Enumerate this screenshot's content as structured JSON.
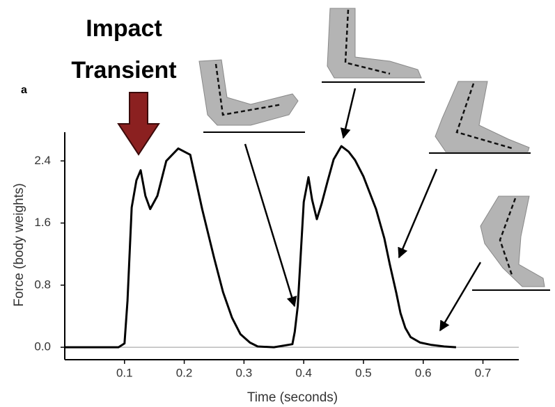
{
  "chart_data": {
    "type": "line",
    "annotations": [
      "Impact",
      "Transient"
    ],
    "panel_label": "a",
    "x_label": "Time (seconds)",
    "y_label": "Force (body weights)",
    "x": [
      0,
      0.09,
      0.1,
      0.105,
      0.112,
      0.12,
      0.127,
      0.135,
      0.143,
      0.155,
      0.17,
      0.19,
      0.21,
      0.23,
      0.25,
      0.265,
      0.28,
      0.294,
      0.31,
      0.323,
      0.35,
      0.381,
      0.385,
      0.39,
      0.395,
      0.4,
      0.408,
      0.414,
      0.422,
      0.43,
      0.44,
      0.45,
      0.463,
      0.475,
      0.486,
      0.5,
      0.521,
      0.535,
      0.544,
      0.555,
      0.562,
      0.57,
      0.579,
      0.595,
      0.614,
      0.635,
      0.655
    ],
    "values": [
      0,
      0,
      0.05,
      0.6,
      1.8,
      2.15,
      2.28,
      1.95,
      1.78,
      1.95,
      2.4,
      2.56,
      2.48,
      1.78,
      1.15,
      0.71,
      0.38,
      0.17,
      0.06,
      0.01,
      0,
      0.04,
      0.2,
      0.53,
      1.2,
      1.87,
      2.19,
      1.9,
      1.65,
      1.85,
      2.14,
      2.42,
      2.59,
      2.52,
      2.41,
      2.2,
      1.78,
      1.4,
      1.07,
      0.7,
      0.44,
      0.25,
      0.13,
      0.06,
      0.03,
      0.01,
      0
    ],
    "color": "#000000",
    "xlim": [
      0,
      0.76
    ],
    "ylim": [
      -0.16,
      2.77
    ],
    "xticks": [
      0.1,
      0.2,
      0.3,
      0.4,
      0.5,
      0.6,
      0.7
    ],
    "yticks": [
      {
        "value": 0,
        "label": "0.0"
      },
      0.8,
      1.6,
      2.4
    ]
  }
}
